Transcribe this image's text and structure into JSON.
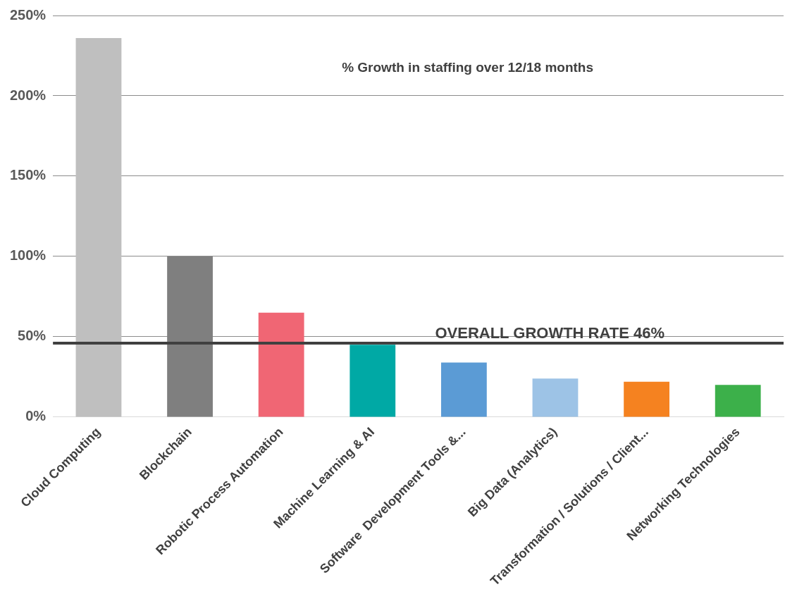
{
  "chart_data": {
    "type": "bar",
    "title": "% Growth in staffing over 12/18 months",
    "categories": [
      "Cloud Computing",
      "Blockchain",
      "Robotic Process Automation",
      "Machine Learning & AI",
      "Software  Development Tools &...",
      "Big Data (Analytics)",
      "Transformation / Solutions / Client...",
      "Networking Technologies"
    ],
    "values": [
      236,
      100,
      65,
      45,
      34,
      24,
      22,
      20
    ],
    "colors": [
      "#bfbfbf",
      "#7f7f7f",
      "#f06674",
      "#00a9a5",
      "#5b9bd5",
      "#9dc3e6",
      "#f58220",
      "#3cb04a"
    ],
    "ylim": [
      0,
      250
    ],
    "yticks": [
      {
        "value": 0,
        "label": "0%"
      },
      {
        "value": 50,
        "label": "50%"
      },
      {
        "value": 100,
        "label": "100%"
      },
      {
        "value": 150,
        "label": "150%"
      },
      {
        "value": 200,
        "label": "200%"
      },
      {
        "value": 250,
        "label": "250%"
      }
    ],
    "grid": "y",
    "legend": false,
    "ref_lines": [
      {
        "axis": "y",
        "value": 46,
        "label": "OVERALL GROWTH RATE 46%",
        "color": "#404040"
      }
    ]
  }
}
